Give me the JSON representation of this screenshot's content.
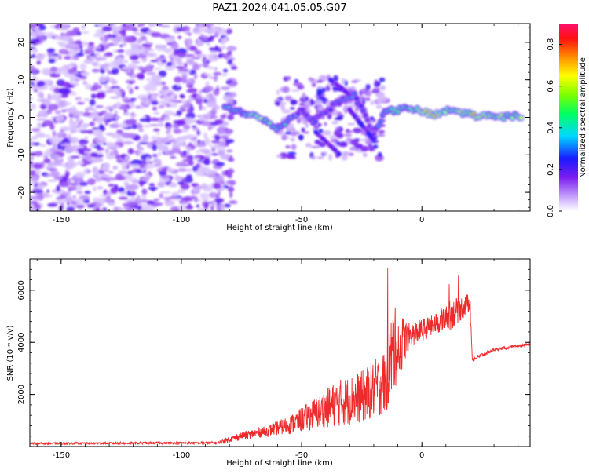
{
  "title": "PAZ1.2024.041.05.05.G07",
  "chart_data": [
    {
      "type": "heatmap",
      "xlabel": "Height of straight line (km)",
      "ylabel": "Frequency (Hz)",
      "xlim": [
        -163,
        45
      ],
      "ylim": [
        -25,
        25
      ],
      "xticks": [
        -150,
        -100,
        -50,
        0
      ],
      "yticks": [
        -20,
        -10,
        0,
        10,
        20
      ],
      "colorbar": {
        "label": "Normalized spectral amplitude",
        "range": [
          0,
          0.9
        ],
        "ticks": [
          0.0,
          0.2,
          0.4,
          0.6,
          0.8
        ]
      },
      "ridge": [
        {
          "x": -82,
          "f": 2.5,
          "amp": 0.45
        },
        {
          "x": -75,
          "f": 1.5,
          "amp": 0.4
        },
        {
          "x": -68,
          "f": 0.0,
          "amp": 0.65
        },
        {
          "x": -60,
          "f": -3.0,
          "amp": 0.45
        },
        {
          "x": -50,
          "f": 2.0,
          "amp": 0.3
        },
        {
          "x": -45,
          "f": -1.0,
          "amp": 0.3
        },
        {
          "x": -35,
          "f": 4.0,
          "amp": 0.3
        },
        {
          "x": -28,
          "f": 6.0,
          "amp": 0.35
        },
        {
          "x": -20,
          "f": -4.0,
          "amp": 0.2
        },
        {
          "x": -15,
          "f": 1.5,
          "amp": 0.5
        },
        {
          "x": -5,
          "f": 2.5,
          "amp": 0.55
        },
        {
          "x": 5,
          "f": 0.5,
          "amp": 0.7
        },
        {
          "x": 12,
          "f": 2.0,
          "amp": 0.6
        },
        {
          "x": 22,
          "f": 0.5,
          "amp": 0.7
        },
        {
          "x": 32,
          "f": 0.0,
          "amp": 0.65
        },
        {
          "x": 42,
          "f": 0.5,
          "amp": 0.6
        }
      ]
    },
    {
      "type": "line",
      "xlabel": "Height of straight line (km)",
      "ylabel": "SNR (10 * v/v)",
      "xlim": [
        -163,
        45
      ],
      "ylim": [
        0,
        7200
      ],
      "xticks": [
        -150,
        -100,
        -50,
        0
      ],
      "yticks": [
        2000,
        4000,
        6000
      ],
      "color": "#ee2a2a",
      "series_envelope": [
        {
          "x": -163,
          "base": 100,
          "spread": 80
        },
        {
          "x": -85,
          "base": 120,
          "spread": 100
        },
        {
          "x": -75,
          "base": 350,
          "spread": 300
        },
        {
          "x": -65,
          "base": 500,
          "spread": 400
        },
        {
          "x": -55,
          "base": 700,
          "spread": 700
        },
        {
          "x": -45,
          "base": 1000,
          "spread": 1200
        },
        {
          "x": -35,
          "base": 1300,
          "spread": 1800
        },
        {
          "x": -25,
          "base": 1500,
          "spread": 2000
        },
        {
          "x": -15,
          "base": 2000,
          "spread": 2500
        },
        {
          "x": -12,
          "base": 3000,
          "spread": 3500
        },
        {
          "x": -5,
          "base": 4100,
          "spread": 900
        },
        {
          "x": 5,
          "base": 4500,
          "spread": 800
        },
        {
          "x": 12,
          "base": 4800,
          "spread": 1200
        },
        {
          "x": 20,
          "base": 5400,
          "spread": 700
        },
        {
          "x": 21,
          "base": 3300,
          "spread": 200
        },
        {
          "x": 30,
          "base": 3700,
          "spread": 120
        },
        {
          "x": 45,
          "base": 3900,
          "spread": 100
        }
      ]
    }
  ]
}
